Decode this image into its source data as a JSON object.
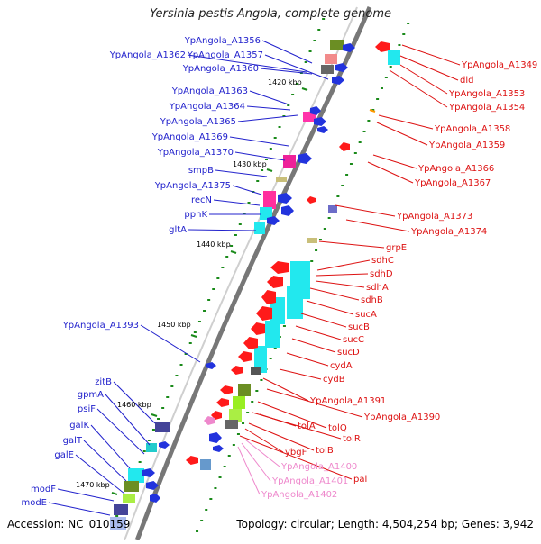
{
  "title": "Yersinia pestis Angola, complete genome",
  "accession": "Accession: NC_010159",
  "topology": "Topology: circular; Length: 4,504,254 bp; Genes: 3,942",
  "colors": {
    "left_label": "#2222cc",
    "right_label": "#dd1111",
    "pale_label": "#ee88cc",
    "backbone": "#888888",
    "tick": "#1a8a1a"
  },
  "kbp_labels": [
    "1420 kbp",
    "1430 kbp",
    "1440 kbp",
    "1450 kbp",
    "1460 kbp",
    "1470 kbp"
  ],
  "left_labels": [
    "YpAngola_A1356",
    "YpAngola_A1362",
    "YpAngola_A1357",
    "YpAngola_A1360",
    "YpAngola_A1363",
    "YpAngola_A1364",
    "YpAngola_A1365",
    "YpAngola_A1369",
    "YpAngola_A1370",
    "smpB",
    "YpAngola_A1375",
    "recN",
    "ppnK",
    "gltA",
    "YpAngola_A1393",
    "zitB",
    "gpmA",
    "psiF",
    "galK",
    "galT",
    "galE",
    "modF",
    "modE"
  ],
  "right_labels": [
    "YpAngola_A1349",
    "dld",
    "YpAngola_A1353",
    "YpAngola_A1354",
    "YpAngola_A1358",
    "YpAngola_A1359",
    "YpAngola_A1366",
    "YpAngola_A1367",
    "YpAngola_A1373",
    "YpAngola_A1374",
    "grpE",
    "sdhC",
    "sdhD",
    "sdhA",
    "sdhB",
    "sucA",
    "sucB",
    "sucC",
    "sucD",
    "cydA",
    "cydB",
    "YpAngola_A1391",
    "YpAngola_A1390",
    "tolA",
    "tolQ",
    "tolR",
    "tolB",
    "ybgF",
    "pal"
  ],
  "pale_labels": [
    "YpAngola_A1400",
    "YpAngola_A1401",
    "YpAngola_A1402"
  ]
}
